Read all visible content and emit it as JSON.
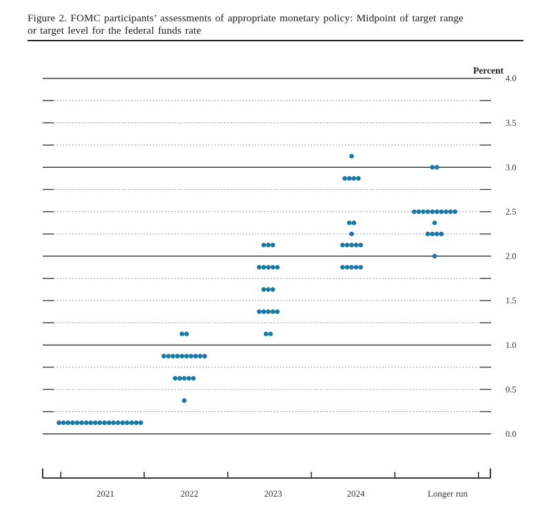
{
  "figure": {
    "title_line1": "Figure 2.  FOMC participants’ assessments of appropriate monetary policy:  Midpoint of target range",
    "title_line2": "or target level for the federal funds rate"
  },
  "chart_data": {
    "type": "scatter",
    "subtype": "dot-plot",
    "title": "Figure 2. FOMC participants’ assessments of appropriate monetary policy: Midpoint of target range or target level for the federal funds rate",
    "ylabel": "Percent",
    "ylim": [
      0.0,
      4.0
    ],
    "grid": {
      "solid_at": [
        0.0,
        1.0,
        2.0,
        3.0,
        4.0
      ],
      "dotted_every": 0.25,
      "tick_labels_side": "right"
    },
    "yticks": [
      {
        "label": "4.0",
        "value": 4.0
      },
      {
        "label": "3.5",
        "value": 3.5
      },
      {
        "label": "3.0",
        "value": 3.0
      },
      {
        "label": "2.5",
        "value": 2.5
      },
      {
        "label": "2.0",
        "value": 2.0
      },
      {
        "label": "1.5",
        "value": 1.5
      },
      {
        "label": "1.0",
        "value": 1.0
      },
      {
        "label": "0.5",
        "value": 0.5
      },
      {
        "label": "0.0",
        "value": 0.0
      }
    ],
    "categories": [
      "2021",
      "2022",
      "2023",
      "2024",
      "Longer run"
    ],
    "dot_color": "#1878a8",
    "series": [
      {
        "category": "2021",
        "distribution": [
          {
            "value": 0.125,
            "count": 19
          }
        ]
      },
      {
        "category": "2022",
        "distribution": [
          {
            "value": 0.375,
            "count": 1
          },
          {
            "value": 0.625,
            "count": 5
          },
          {
            "value": 0.875,
            "count": 10
          },
          {
            "value": 1.125,
            "count": 2
          }
        ]
      },
      {
        "category": "2023",
        "distribution": [
          {
            "value": 1.125,
            "count": 2
          },
          {
            "value": 1.375,
            "count": 5
          },
          {
            "value": 1.625,
            "count": 3
          },
          {
            "value": 1.875,
            "count": 5
          },
          {
            "value": 2.125,
            "count": 3
          }
        ]
      },
      {
        "category": "2024",
        "distribution": [
          {
            "value": 1.875,
            "count": 5
          },
          {
            "value": 2.125,
            "count": 5
          },
          {
            "value": 2.25,
            "count": 1
          },
          {
            "value": 2.375,
            "count": 2
          },
          {
            "value": 2.875,
            "count": 4
          },
          {
            "value": 3.125,
            "count": 1
          }
        ]
      },
      {
        "category": "Longer run",
        "distribution": [
          {
            "value": 2.0,
            "count": 1
          },
          {
            "value": 2.25,
            "count": 4
          },
          {
            "value": 2.375,
            "count": 1
          },
          {
            "value": 2.5,
            "count": 10
          },
          {
            "value": 3.0,
            "count": 2
          }
        ]
      }
    ]
  }
}
